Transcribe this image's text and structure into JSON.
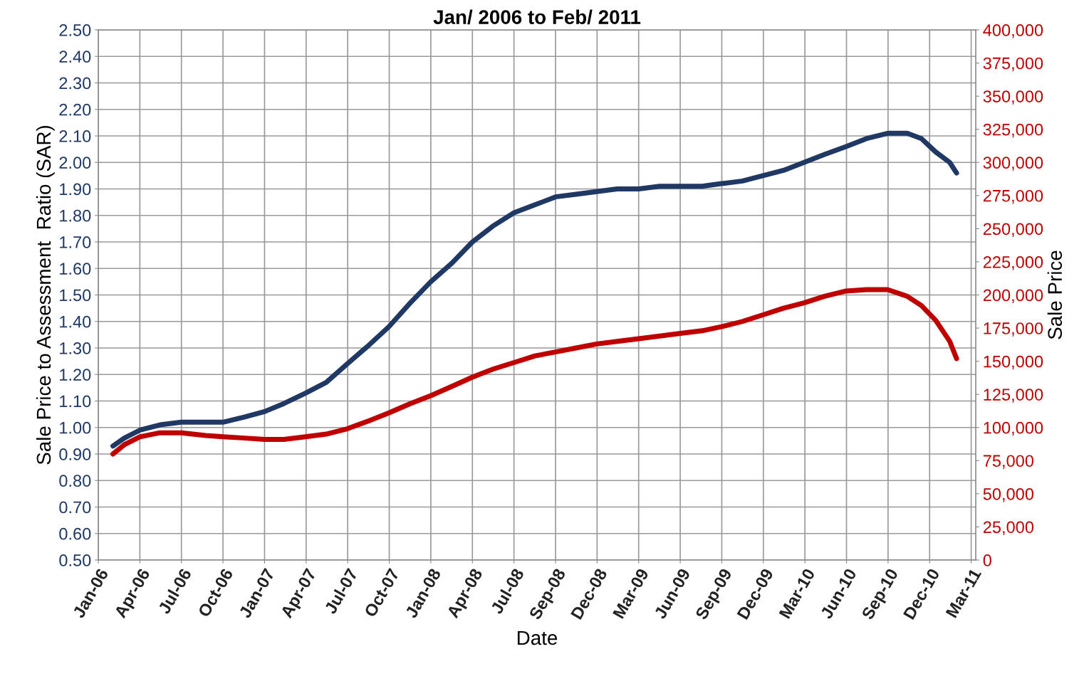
{
  "chart_data": {
    "type": "line",
    "title": "Jan/ 2006 to Feb/ 2011",
    "xlabel": "Date",
    "ylabel": "Sale Price to Assessment  Ratio (SAR)",
    "y2label": "Sale Price",
    "x": [
      "2006-02-04",
      "2006-03-01",
      "2006-04-04",
      "2006-05-18",
      "2006-07-04",
      "2006-08-26",
      "2006-10-03",
      "2006-11-20",
      "2007-01-02",
      "2007-02-13",
      "2007-04-02",
      "2007-05-17",
      "2007-07-02",
      "2007-08-18",
      "2007-10-01",
      "2007-11-17",
      "2008-01-01",
      "2008-02-16",
      "2008-04-01",
      "2008-05-16",
      "2008-07-01",
      "2008-08-16",
      "2008-09-30",
      "2008-11-14",
      "2008-12-29",
      "2009-02-12",
      "2009-03-31",
      "2009-05-16",
      "2009-06-30",
      "2009-08-17",
      "2009-09-28",
      "2009-11-13",
      "2009-12-28",
      "2010-02-11",
      "2010-03-28",
      "2010-05-12",
      "2010-06-28",
      "2010-08-12",
      "2010-09-27",
      "2010-11-09",
      "2010-12-10",
      "2011-01-10",
      "2011-02-10",
      "2011-02-25"
    ],
    "series": [
      {
        "name": null,
        "color": "#1f3864",
        "values": [
          0.93,
          0.96,
          0.99,
          1.01,
          1.02,
          1.02,
          1.02,
          1.04,
          1.06,
          1.09,
          1.13,
          1.17,
          1.24,
          1.31,
          1.38,
          1.47,
          1.55,
          1.62,
          1.7,
          1.76,
          1.81,
          1.84,
          1.87,
          1.88,
          1.89,
          1.9,
          1.9,
          1.91,
          1.91,
          1.91,
          1.92,
          1.93,
          1.95,
          1.97,
          2.0,
          2.03,
          2.06,
          2.09,
          2.11,
          2.11,
          2.09,
          2.04,
          2.0,
          1.96
        ]
      },
      {
        "name": null,
        "color": "#c00000",
        "axis": "y2",
        "values": [
          80000,
          87000,
          93000,
          96000,
          96000,
          94000,
          93000,
          92000,
          91000,
          91000,
          93000,
          95000,
          99000,
          105000,
          111000,
          118000,
          124000,
          131000,
          138000,
          144000,
          149000,
          154000,
          157000,
          160000,
          163000,
          165000,
          167000,
          169000,
          171000,
          173000,
          176000,
          180000,
          185000,
          190000,
          194000,
          199000,
          203000,
          204000,
          204000,
          199000,
          192000,
          181000,
          165000,
          152000
        ]
      }
    ],
    "xlim": [
      "2006-01-03",
      "2011-04-08"
    ],
    "xticks": [
      {
        "value": "2006-01-03",
        "label": "Jan-06"
      },
      {
        "value": "2006-04-04",
        "label": "Apr-06"
      },
      {
        "value": "2006-07-04",
        "label": "Jul-06"
      },
      {
        "value": "2006-10-03",
        "label": "Oct-06"
      },
      {
        "value": "2007-01-02",
        "label": "Jan-07"
      },
      {
        "value": "2007-04-03",
        "label": "Apr-07"
      },
      {
        "value": "2007-07-03",
        "label": "Jul-07"
      },
      {
        "value": "2007-10-02",
        "label": "Oct-07"
      },
      {
        "value": "2008-01-01",
        "label": "Jan-08"
      },
      {
        "value": "2008-04-01",
        "label": "Apr-08"
      },
      {
        "value": "2008-07-01",
        "label": "Jul-08"
      },
      {
        "value": "2008-09-30",
        "label": "Sep-08"
      },
      {
        "value": "2008-12-30",
        "label": "Dec-08"
      },
      {
        "value": "2009-03-31",
        "label": "Mar-09"
      },
      {
        "value": "2009-06-30",
        "label": "Jun-09"
      },
      {
        "value": "2009-09-29",
        "label": "Sep-09"
      },
      {
        "value": "2009-12-29",
        "label": "Dec-09"
      },
      {
        "value": "2010-03-30",
        "label": "Mar-10"
      },
      {
        "value": "2010-06-29",
        "label": "Jun-10"
      },
      {
        "value": "2010-09-28",
        "label": "Sep-10"
      },
      {
        "value": "2010-12-28",
        "label": "Dec-10"
      },
      {
        "value": "2011-03-29",
        "label": "Mar-11"
      }
    ],
    "ylim": [
      0.5,
      2.5
    ],
    "yticks": [
      {
        "value": 0.5,
        "label": "0.50"
      },
      {
        "value": 0.6,
        "label": "0.60"
      },
      {
        "value": 0.7,
        "label": "0.70"
      },
      {
        "value": 0.8,
        "label": "0.80"
      },
      {
        "value": 0.9,
        "label": "0.90"
      },
      {
        "value": 1.0,
        "label": "1.00"
      },
      {
        "value": 1.1,
        "label": "1.10"
      },
      {
        "value": 1.2,
        "label": "1.20"
      },
      {
        "value": 1.3,
        "label": "1.30"
      },
      {
        "value": 1.4,
        "label": "1.40"
      },
      {
        "value": 1.5,
        "label": "1.50"
      },
      {
        "value": 1.6,
        "label": "1.60"
      },
      {
        "value": 1.7,
        "label": "1.70"
      },
      {
        "value": 1.8,
        "label": "1.80"
      },
      {
        "value": 1.9,
        "label": "1.90"
      },
      {
        "value": 2.0,
        "label": "2.00"
      },
      {
        "value": 2.1,
        "label": "2.10"
      },
      {
        "value": 2.2,
        "label": "2.20"
      },
      {
        "value": 2.3,
        "label": "2.30"
      },
      {
        "value": 2.4,
        "label": "2.40"
      },
      {
        "value": 2.5,
        "label": "2.50"
      }
    ],
    "y2lim": [
      0,
      400000
    ],
    "y2ticks": [
      0,
      {
        "value": 25000,
        "label": "25,000"
      },
      {
        "value": 50000,
        "label": "50,000"
      },
      {
        "value": 75000,
        "label": "75,000"
      },
      {
        "value": 100000,
        "label": "100,000"
      },
      {
        "value": 125000,
        "label": "125,000"
      },
      {
        "value": 150000,
        "label": "150,000"
      },
      {
        "value": 175000,
        "label": "175,000"
      },
      {
        "value": 200000,
        "label": "200,000"
      },
      {
        "value": 225000,
        "label": "225,000"
      },
      {
        "value": 250000,
        "label": "250,000"
      },
      {
        "value": 275000,
        "label": "275,000"
      },
      {
        "value": 300000,
        "label": "300,000"
      },
      {
        "value": 325000,
        "label": "325,000"
      },
      {
        "value": 350000,
        "label": "350,000"
      },
      {
        "value": 375000,
        "label": "375,000"
      },
      {
        "value": 400000,
        "label": "400,000"
      }
    ],
    "grid": true,
    "marker": "none",
    "line_style": "solid"
  }
}
